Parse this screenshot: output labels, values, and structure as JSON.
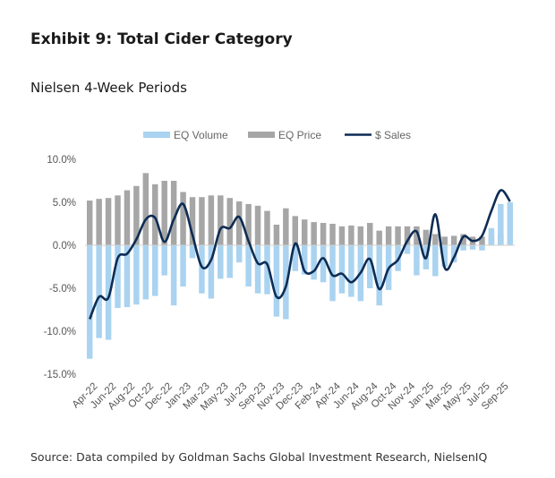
{
  "title": "Exhibit 9: Total Cider Category",
  "subtitle": "Nielsen 4-Week Periods",
  "source": "Source: Data compiled by Goldman Sachs Global Investment Research, NielsenIQ",
  "chart_data": {
    "type": "bar",
    "categories": [
      "Apr-22",
      "May-22",
      "Jun-22",
      "Jul-22",
      "Aug-22",
      "Sep-22",
      "Oct-22",
      "Nov-22",
      "Dec-22",
      "Dec-22b",
      "Jan-23",
      "Feb-23",
      "Mar-23",
      "Apr-23",
      "May-23",
      "Jun-23",
      "Jul-23",
      "Aug-23",
      "Sep-23",
      "Oct-23",
      "Nov-23",
      "Nov-23b",
      "Dec-23",
      "Jan-24",
      "Feb-24",
      "Mar-24",
      "Apr-24",
      "May-24",
      "Jun-24",
      "Jul-24",
      "Aug-24",
      "Sep-24",
      "Oct-24",
      "Nov-24",
      "Dec-24",
      "Dec-24b",
      "Jan-25",
      "Feb-25",
      "Mar-25",
      "Apr-25",
      "May-25",
      "Jun-25",
      "Jul-25",
      "Aug-25",
      "Sep-25",
      "Oct-25"
    ],
    "x_tick_labels": [
      "Apr-22",
      "Jun-22",
      "Aug-22",
      "Oct-22",
      "Dec-22",
      "Jan-23",
      "Mar-23",
      "May-23",
      "Jul-23",
      "Sep-23",
      "Nov-23",
      "Dec-23",
      "Feb-24",
      "Apr-24",
      "Jun-24",
      "Aug-24",
      "Oct-24",
      "Nov-24",
      "Jan-25",
      "Mar-25",
      "May-25",
      "Jul-25",
      "Sep-25"
    ],
    "series": [
      {
        "name": "EQ Volume",
        "kind": "bar",
        "color": "#a9d3f0",
        "values": [
          -13.2,
          -10.8,
          -11.0,
          -7.3,
          -7.2,
          -6.9,
          -6.3,
          -5.9,
          -3.5,
          -7.0,
          -4.8,
          -1.5,
          -5.6,
          -6.2,
          -3.9,
          -3.8,
          -2.0,
          -4.8,
          -5.6,
          -5.7,
          -8.3,
          -8.6,
          -3.0,
          -3.4,
          -4.0,
          -4.3,
          -6.5,
          -5.6,
          -6.0,
          -6.5,
          -5.0,
          -7.0,
          -5.2,
          -3.0,
          -1.0,
          -3.5,
          -2.8,
          -3.6,
          -2.5,
          -2.0,
          -0.6,
          -0.5,
          -0.6,
          2.0,
          4.8,
          5.0
        ]
      },
      {
        "name": "EQ Price",
        "kind": "bar",
        "color": "#a6a6a6",
        "values": [
          5.2,
          5.4,
          5.5,
          5.8,
          6.4,
          6.9,
          8.4,
          7.1,
          7.5,
          7.5,
          6.2,
          5.6,
          5.6,
          5.8,
          5.8,
          5.5,
          5.1,
          4.8,
          4.6,
          4.0,
          2.4,
          4.3,
          3.4,
          3.0,
          2.7,
          2.6,
          2.5,
          2.2,
          2.3,
          2.2,
          2.6,
          1.7,
          2.2,
          2.2,
          2.2,
          2.2,
          1.8,
          1.3,
          1.0,
          1.1,
          1.3,
          1.0,
          1.0,
          1.0,
          1.3,
          1.0
        ]
      },
      {
        "name": "$ Sales",
        "kind": "line",
        "color": "#0d2c54",
        "values": [
          -8.6,
          -6.0,
          -6.1,
          -1.5,
          -1.0,
          0.7,
          3.0,
          3.2,
          0.4,
          3.0,
          4.8,
          1.2,
          -2.5,
          -1.7,
          1.9,
          2.0,
          3.3,
          0.5,
          -2.1,
          -2.2,
          -6.0,
          -4.8,
          0.2,
          -3.0,
          -3.0,
          -1.5,
          -3.5,
          -3.3,
          -4.3,
          -3.2,
          -1.6,
          -5.1,
          -2.7,
          -1.7,
          0.5,
          1.6,
          -1.5,
          3.6,
          -2.6,
          -1.4,
          1.0,
          0.5,
          1.1,
          4.0,
          6.4,
          5.1
        ]
      }
    ],
    "legend": [
      "EQ Volume",
      "EQ Price",
      "$ Sales"
    ],
    "legend_position": "top",
    "ylim": [
      -15,
      10
    ],
    "y_ticks": [
      "10.0%",
      "5.0%",
      "0.0%",
      "-5.0%",
      "-10.0%",
      "-15.0%"
    ],
    "ylabel": "",
    "xlabel": "",
    "grid": false
  }
}
